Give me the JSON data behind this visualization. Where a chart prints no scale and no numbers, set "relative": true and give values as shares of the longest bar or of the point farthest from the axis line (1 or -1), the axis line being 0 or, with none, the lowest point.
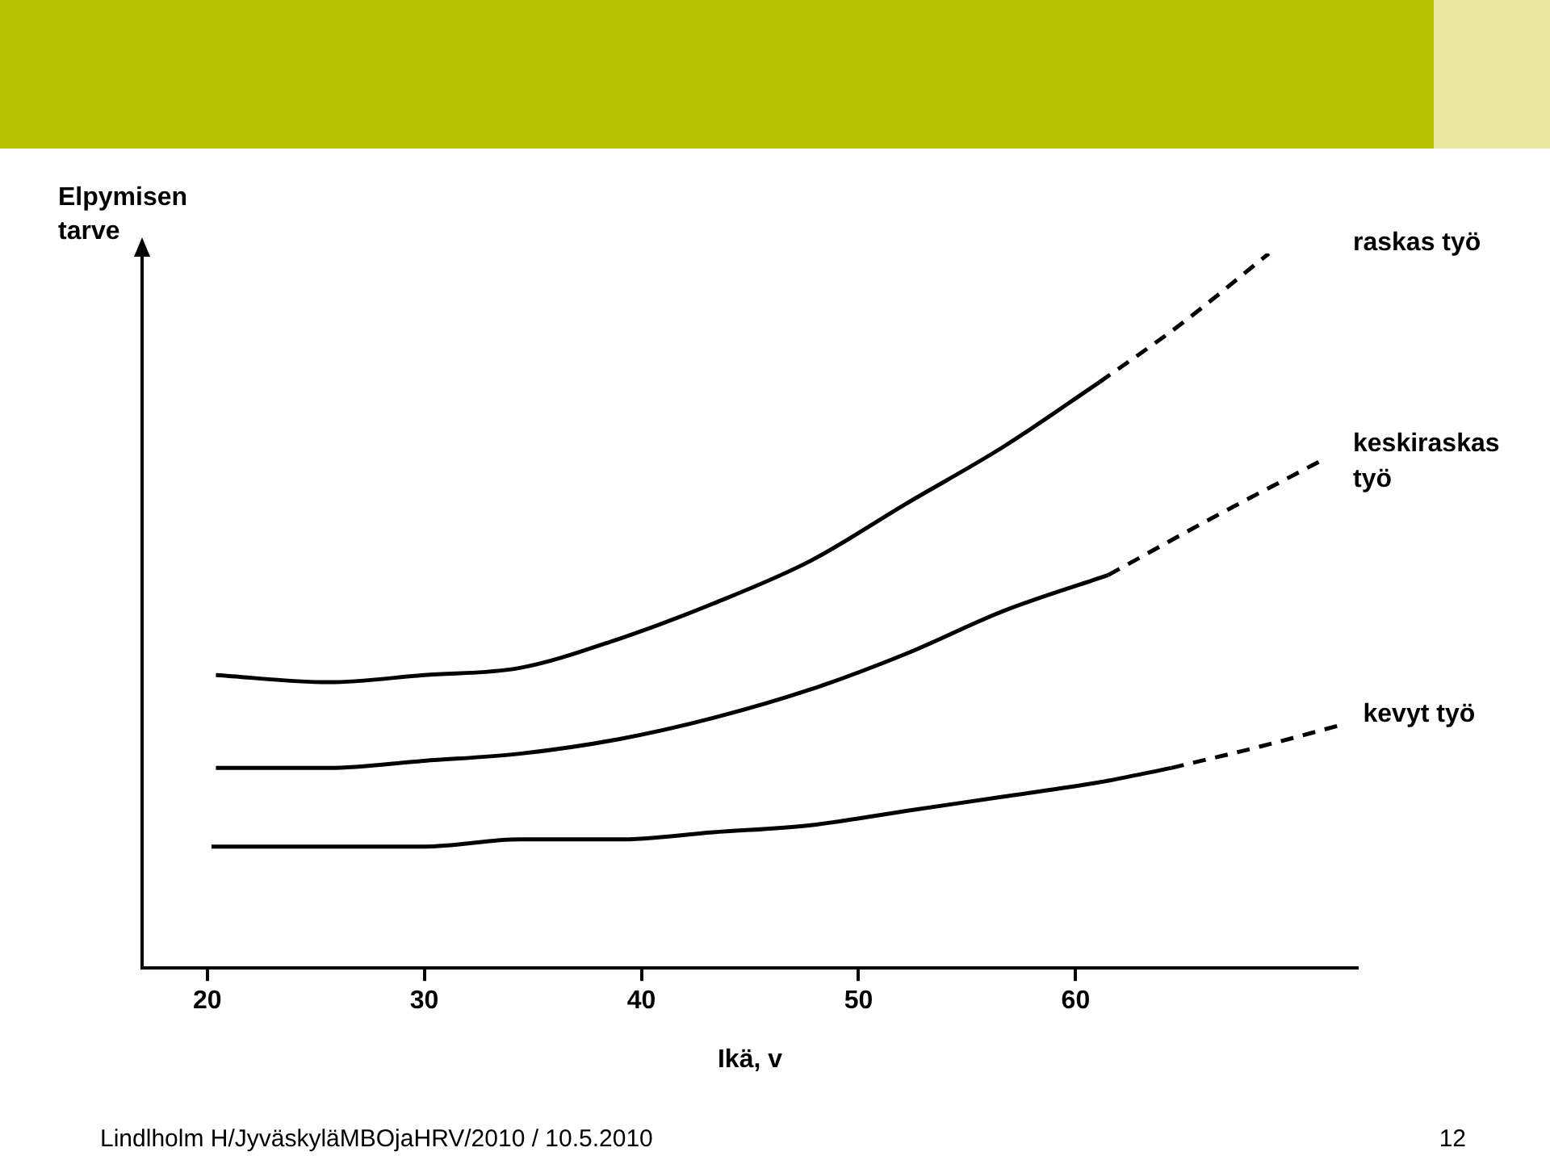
{
  "chart_data": {
    "type": "line",
    "relative": true,
    "ylabel": "Elpymisen tarve",
    "xlabel": "Ikä, v",
    "xlim": [
      17,
      73
    ],
    "xticks": [
      20,
      30,
      40,
      50,
      60
    ],
    "grid": false,
    "legend": false,
    "marker": "none",
    "series": [
      {
        "name": "raskas työ",
        "color": "#000000",
        "line_style": "solid",
        "x": [
          20.4,
          25.6,
          30,
          34.4,
          38.9,
          43.3,
          47.8,
          52.2,
          56.7,
          61.1
        ],
        "values": [
          0.41,
          0.4,
          0.41,
          0.42,
          0.46,
          0.51,
          0.57,
          0.65,
          0.73,
          0.82
        ]
      },
      {
        "color": "#000000",
        "line_style": "dashed",
        "x": [
          61.1,
          64.8,
          68.9
        ],
        "values": [
          0.82,
          0.9,
          1
        ]
      },
      {
        "name": "keskiraskas työ",
        "color": "#000000",
        "line_style": "solid",
        "x": [
          20.4,
          25.6,
          30,
          34.4,
          38.9,
          43.3,
          47.8,
          52.2,
          56.7,
          61.5
        ],
        "values": [
          0.28,
          0.28,
          0.29,
          0.3,
          0.32,
          0.35,
          0.39,
          0.44,
          0.5,
          0.55
        ]
      },
      {
        "color": "#000000",
        "line_style": "dashed",
        "x": [
          61.5,
          66.3,
          71.3
        ],
        "values": [
          0.55,
          0.63,
          0.71
        ]
      },
      {
        "name": "kevyt työ",
        "color": "#000000",
        "line_style": "solid",
        "x": [
          20.2,
          25.6,
          30,
          34.4,
          38.9,
          43.3,
          47.8,
          52.2,
          56.7,
          61.1,
          64.4
        ],
        "values": [
          0.17,
          0.17,
          0.17,
          0.18,
          0.18,
          0.19,
          0.2,
          0.22,
          0.24,
          0.26,
          0.28
        ]
      },
      {
        "color": "#000000",
        "line_style": "dashed",
        "x": [
          64.4,
          68.5,
          72.2
        ],
        "values": [
          0.28,
          0.31,
          0.34
        ]
      }
    ],
    "annotations": [
      "Lindlholm H/JyväskyläMBOjaHRV/2010 / 10.5.2010",
      "12"
    ]
  }
}
